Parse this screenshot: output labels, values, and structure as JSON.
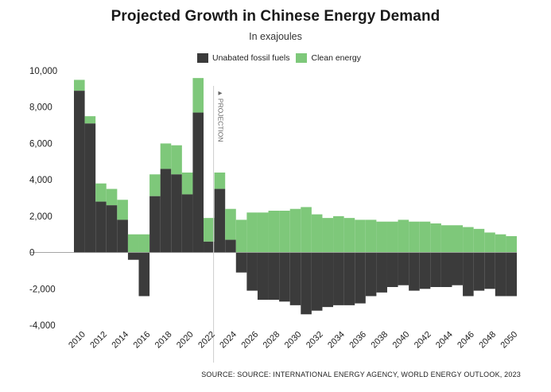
{
  "title": "Projected Growth in Chinese Energy Demand",
  "subtitle": "In exajoules",
  "legend": {
    "fossil_label": "Unabated fossil fuels",
    "clean_label": "Clean energy"
  },
  "projection_label": "▲ PROJECTION",
  "source": "SOURCE: SOURCE: INTERNATIONAL ENERGY AGENCY, WORLD ENERGY OUTLOOK, 2023",
  "colors": {
    "fossil": "#3b3b3b",
    "clean": "#7ec87a",
    "zero_line": "#999999",
    "projection_line": "#cccccc"
  },
  "chart_data": {
    "type": "bar",
    "title": "Projected Growth in Chinese Energy Demand",
    "subtitle": "In exajoules",
    "xlabel": "",
    "ylabel": "",
    "ylim": [
      -4000,
      10000
    ],
    "y_ticks": [
      10000,
      8000,
      6000,
      4000,
      2000,
      0,
      -2000,
      -4000
    ],
    "y_tick_labels": [
      "10,000",
      "8,000",
      "6,000",
      "4,000",
      "2,000",
      "0",
      "-2,000",
      "-4,000"
    ],
    "x_tick_labels": [
      "2010",
      "2012",
      "2014",
      "2016",
      "2018",
      "2020",
      "2022",
      "2024",
      "2026",
      "2028",
      "2030",
      "2032",
      "2034",
      "2036",
      "2038",
      "2040",
      "2042",
      "2044",
      "2046",
      "2048",
      "2050"
    ],
    "projection_start_year": 2023,
    "categories": [
      2010,
      2011,
      2012,
      2013,
      2014,
      2015,
      2016,
      2017,
      2018,
      2019,
      2020,
      2021,
      2022,
      2023,
      2024,
      2025,
      2026,
      2027,
      2028,
      2029,
      2030,
      2031,
      2032,
      2033,
      2034,
      2035,
      2036,
      2037,
      2038,
      2039,
      2040,
      2041,
      2042,
      2043,
      2044,
      2045,
      2046,
      2047,
      2048,
      2049,
      2050
    ],
    "series": [
      {
        "name": "Unabated fossil fuels",
        "values": [
          8900,
          7100,
          2800,
          2600,
          1800,
          -400,
          -2400,
          3100,
          4600,
          4300,
          3200,
          7700,
          600,
          3500,
          700,
          -1100,
          -2100,
          -2600,
          -2600,
          -2700,
          -2900,
          -3400,
          -3200,
          -3000,
          -2900,
          -2900,
          -2800,
          -2400,
          -2200,
          -1900,
          -1800,
          -2100,
          -2000,
          -1900,
          -1900,
          -1800,
          -2400,
          -2100,
          -2000,
          -2400,
          -2400
        ]
      },
      {
        "name": "Clean energy",
        "values": [
          600,
          400,
          1000,
          900,
          1100,
          1000,
          1000,
          1200,
          1400,
          1600,
          1200,
          1900,
          1300,
          900,
          1700,
          1800,
          2200,
          2200,
          2300,
          2300,
          2400,
          2500,
          2100,
          1900,
          2000,
          1900,
          1800,
          1800,
          1700,
          1700,
          1800,
          1700,
          1700,
          1600,
          1500,
          1500,
          1400,
          1300,
          1100,
          1000,
          900
        ]
      }
    ]
  }
}
